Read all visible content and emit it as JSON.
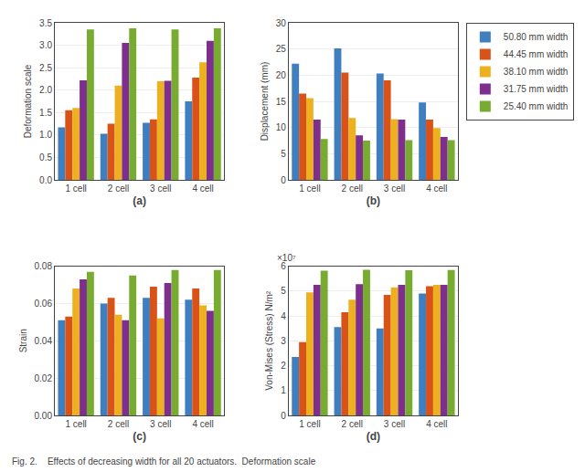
{
  "caption": "Fig. 2.    Effects of decreasing width for all 20 actuators.  Deformation scale",
  "chart_data": [
    {
      "type": "bar",
      "xlabel": "(a)",
      "ylabel": "Deformation scale",
      "categories": [
        "1 cell",
        "2 cell",
        "3 cell",
        "4 cell"
      ],
      "series": [
        {
          "color": "#3f7fbf",
          "values": [
            1.17,
            1.03,
            1.27,
            1.75
          ]
        },
        {
          "color": "#d95319",
          "values": [
            1.55,
            1.25,
            1.35,
            2.28
          ]
        },
        {
          "color": "#edb120",
          "values": [
            1.6,
            2.1,
            2.2,
            2.62
          ]
        },
        {
          "color": "#7e2f8e",
          "values": [
            2.22,
            3.05,
            2.21,
            3.1
          ]
        },
        {
          "color": "#77ac30",
          "values": [
            3.35,
            3.38,
            3.35,
            3.38
          ]
        }
      ],
      "ylim": [
        0,
        3.5
      ],
      "yticks": [
        {
          "value": 0,
          "label": "0.0"
        },
        0.5,
        {
          "value": 1.0,
          "label": "1.0"
        },
        1.5,
        {
          "value": 2.0,
          "label": "2.0"
        },
        2.5,
        {
          "value": 3.0,
          "label": "3.0"
        },
        3.5
      ]
    },
    {
      "type": "bar",
      "xlabel": "(b)",
      "ylabel": "Displacement (mm)",
      "categories": [
        "1 cell",
        "2 cell",
        "3 cell",
        "4 cell"
      ],
      "series": [
        {
          "name": "50.80 mm width",
          "color": "#3f7fbf",
          "values": [
            22.2,
            25.1,
            20.3,
            14.8
          ]
        },
        {
          "name": "44.45 mm width",
          "color": "#d95319",
          "values": [
            16.5,
            20.5,
            19.0,
            11.5
          ]
        },
        {
          "name": "38.10 mm width",
          "color": "#edb120",
          "values": [
            15.6,
            11.8,
            11.6,
            9.9
          ]
        },
        {
          "name": "31.75 mm width",
          "color": "#7e2f8e",
          "values": [
            11.5,
            8.5,
            11.5,
            8.2
          ]
        },
        {
          "name": "25.40 mm width",
          "color": "#77ac30",
          "values": [
            7.8,
            7.5,
            7.6,
            7.6
          ]
        }
      ],
      "ylim": [
        0,
        30
      ],
      "yticks": [
        0,
        5,
        10,
        15,
        20,
        25,
        30
      ],
      "legend": "right"
    },
    {
      "type": "bar",
      "xlabel": "(c)",
      "ylabel": "Strain",
      "categories": [
        "1 cell",
        "2 cell",
        "3 cell",
        "4 cell"
      ],
      "series": [
        {
          "color": "#3f7fbf",
          "values": [
            0.051,
            0.06,
            0.063,
            0.062
          ]
        },
        {
          "color": "#d95319",
          "values": [
            0.053,
            0.063,
            0.069,
            0.068
          ]
        },
        {
          "color": "#edb120",
          "values": [
            0.068,
            0.054,
            0.052,
            0.059
          ]
        },
        {
          "color": "#7e2f8e",
          "values": [
            0.073,
            0.051,
            0.071,
            0.056
          ]
        },
        {
          "color": "#77ac30",
          "values": [
            0.077,
            0.075,
            0.078,
            0.078
          ]
        }
      ],
      "ylim": [
        0,
        0.08
      ],
      "yticks": [
        {
          "value": 0,
          "label": "0.00"
        },
        0.02,
        0.04,
        0.06,
        0.08
      ]
    },
    {
      "type": "bar",
      "xlabel": "(d)",
      "ylabel": "Von-Mises (Stress) N/m²",
      "categories": [
        "1 cell",
        "2 cell",
        "3 cell",
        "4 cell"
      ],
      "series": [
        {
          "color": "#3f7fbf",
          "values": [
            2.35,
            3.55,
            3.5,
            4.9
          ]
        },
        {
          "color": "#d95319",
          "values": [
            2.95,
            4.15,
            4.85,
            5.2
          ]
        },
        {
          "color": "#edb120",
          "values": [
            4.95,
            4.65,
            5.15,
            5.25
          ]
        },
        {
          "color": "#7e2f8e",
          "values": [
            5.25,
            5.28,
            5.25,
            5.25
          ]
        },
        {
          "color": "#77ac30",
          "values": [
            5.82,
            5.86,
            5.84,
            5.85
          ]
        }
      ],
      "ylim": [
        0,
        6
      ],
      "yticks": [
        0,
        1,
        2,
        3,
        4,
        5,
        6
      ],
      "annotations": [
        "×10⁷"
      ]
    }
  ]
}
